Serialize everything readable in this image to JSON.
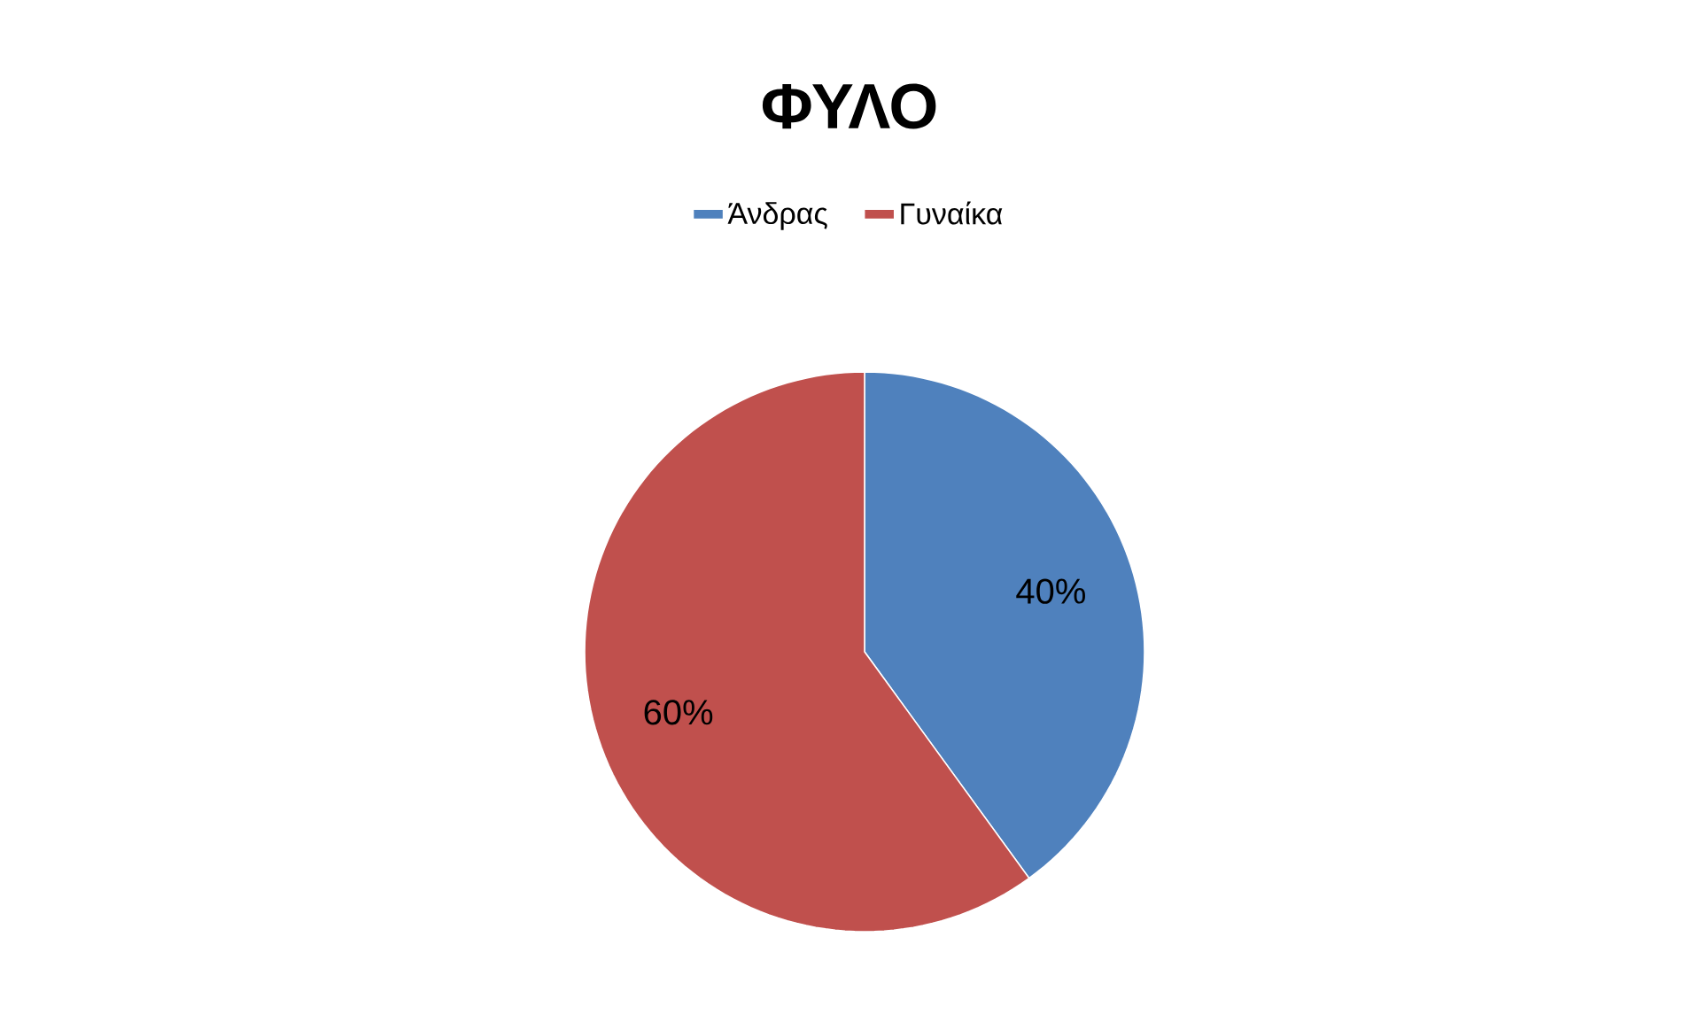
{
  "chart_data": {
    "type": "pie",
    "title": "ΦΥΛΟ",
    "categories": [
      "Άνδρας",
      "Γυναίκα"
    ],
    "values": [
      40,
      60
    ],
    "colors": [
      "#4f81bd",
      "#c0504d"
    ],
    "value_labels": [
      "40%",
      "60%"
    ],
    "legend": "top"
  }
}
